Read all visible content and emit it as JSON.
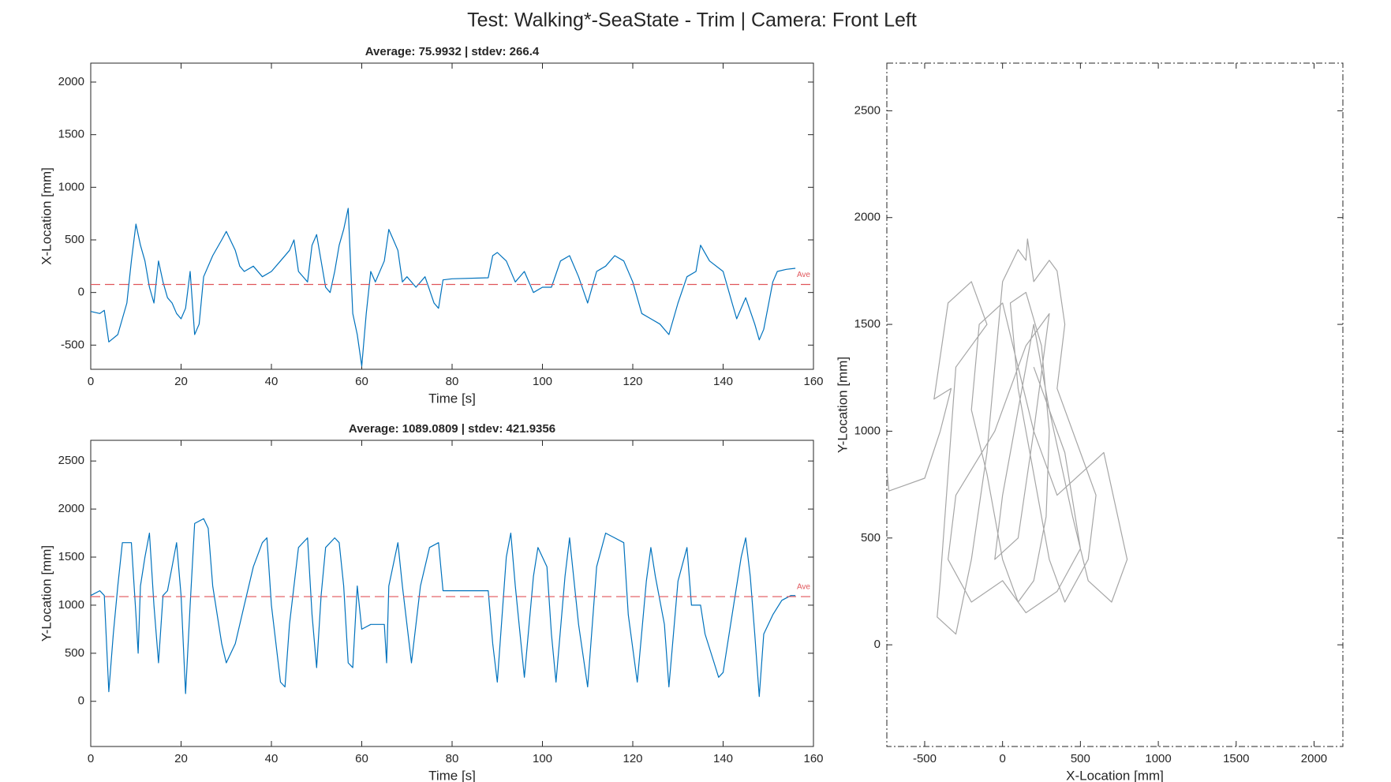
{
  "title": "Test: Walking*-SeaState - Trim  |  Camera: Front Left",
  "chart_data": [
    {
      "type": "line",
      "title": "Average: 75.9932  |  stdev: 266.4",
      "xlabel": "Time [s]",
      "ylabel": "X-Location [mm]",
      "x": [
        0,
        2,
        3,
        4,
        6,
        8,
        9,
        10,
        11,
        12,
        13,
        14,
        15,
        16,
        17,
        18,
        19,
        20,
        21,
        22,
        23,
        24,
        25,
        27,
        29,
        30,
        32,
        33,
        34,
        36,
        38,
        40,
        42,
        44,
        45,
        46,
        48,
        49,
        50,
        51,
        52,
        53,
        54,
        55,
        56,
        57,
        58,
        59,
        60,
        61,
        62,
        63,
        65,
        66,
        67,
        68,
        69,
        70,
        72,
        74,
        76,
        77,
        78,
        80,
        88,
        89,
        90,
        92,
        94,
        96,
        98,
        100,
        102,
        104,
        106,
        108,
        110,
        112,
        114,
        116,
        118,
        120,
        122,
        124,
        126,
        128,
        130,
        132,
        134,
        135,
        137,
        140,
        142,
        143,
        145,
        147,
        148,
        149,
        151,
        152,
        154,
        156
      ],
      "series": [
        {
          "color": "#0072bd",
          "values": [
            -180,
            -200,
            -170,
            -470,
            -400,
            -100,
            300,
            650,
            450,
            300,
            50,
            -100,
            300,
            100,
            -50,
            -100,
            -200,
            -250,
            -150,
            200,
            -400,
            -300,
            150,
            350,
            500,
            580,
            400,
            250,
            200,
            250,
            150,
            200,
            300,
            400,
            500,
            200,
            100,
            450,
            550,
            300,
            50,
            0,
            200,
            450,
            600,
            800,
            -200,
            -400,
            -700,
            -200,
            200,
            100,
            300,
            600,
            500,
            400,
            100,
            150,
            50,
            150,
            -100,
            -150,
            120,
            130,
            140,
            350,
            380,
            300,
            100,
            200,
            0,
            50,
            50,
            300,
            350,
            150,
            -100,
            200,
            250,
            350,
            300,
            100,
            -200,
            -250,
            -300,
            -400,
            -100,
            150,
            200,
            450,
            300,
            200,
            -100,
            -250,
            -50,
            -300,
            -450,
            -350,
            100,
            200,
            220,
            230
          ]
        }
      ],
      "average": 75.9932,
      "average_label": "Ave",
      "average_color": "#e0555a",
      "xlim": [
        0,
        160
      ],
      "ylim": [
        -730,
        2180
      ],
      "xticks": [
        0,
        20,
        40,
        60,
        80,
        100,
        120,
        140,
        160
      ],
      "yticks": [
        -500,
        0,
        500,
        1000,
        1500,
        2000
      ]
    },
    {
      "type": "line",
      "title": "Average: 1089.0809  |  stdev: 421.9356",
      "xlabel": "Time [s]",
      "ylabel": "Y-Location [mm]",
      "x": [
        0,
        2,
        3,
        4,
        5,
        6,
        7,
        9,
        10,
        10.5,
        11,
        12,
        13,
        14,
        15,
        16,
        17,
        18,
        19,
        20,
        21,
        22,
        23,
        25,
        26,
        27,
        29,
        30,
        32,
        34,
        36,
        38,
        39,
        40,
        42,
        43,
        44,
        46,
        48,
        49,
        50,
        51,
        52,
        54,
        55,
        56,
        57,
        58,
        59,
        60,
        62,
        65,
        65.5,
        66,
        68,
        69,
        71,
        73,
        75,
        77,
        78,
        88,
        89,
        90,
        92,
        93,
        94,
        96,
        98,
        99,
        101,
        102,
        103,
        105,
        106,
        108,
        110,
        112,
        114,
        116,
        118,
        119,
        121,
        123,
        124,
        125,
        127,
        128,
        130,
        132,
        133,
        135,
        136,
        138,
        139,
        140,
        142,
        144,
        145,
        146,
        147,
        148,
        149,
        151,
        153,
        155,
        156
      ],
      "series": [
        {
          "color": "#0072bd",
          "values": [
            1100,
            1150,
            1100,
            100,
            700,
            1200,
            1650,
            1650,
            900,
            500,
            1200,
            1500,
            1750,
            1000,
            400,
            1100,
            1150,
            1400,
            1650,
            1100,
            80,
            1000,
            1850,
            1900,
            1800,
            1200,
            600,
            400,
            600,
            1000,
            1400,
            1650,
            1700,
            1000,
            200,
            150,
            800,
            1600,
            1700,
            900,
            350,
            1100,
            1600,
            1700,
            1650,
            1200,
            400,
            350,
            1200,
            750,
            800,
            800,
            400,
            1200,
            1650,
            1200,
            400,
            1200,
            1600,
            1650,
            1150,
            1150,
            600,
            200,
            1500,
            1750,
            1200,
            250,
            1300,
            1600,
            1400,
            700,
            200,
            1300,
            1700,
            800,
            150,
            1400,
            1750,
            1700,
            1650,
            900,
            200,
            1250,
            1600,
            1300,
            800,
            150,
            1250,
            1600,
            1000,
            1000,
            700,
            400,
            250,
            300,
            900,
            1500,
            1700,
            1300,
            700,
            50,
            700,
            900,
            1050,
            1100,
            1100
          ]
        }
      ],
      "average": 1089.0809,
      "average_label": "Ave",
      "average_color": "#e0555a",
      "xlim": [
        0,
        160
      ],
      "ylim": [
        -470,
        2715
      ],
      "xticks": [
        0,
        20,
        40,
        60,
        80,
        100,
        120,
        140,
        160
      ],
      "yticks": [
        0,
        500,
        1000,
        1500,
        2000,
        2500
      ]
    },
    {
      "type": "line",
      "xlabel": "X-Location [mm]",
      "ylabel": "Y-Location [mm]",
      "x": [
        -740,
        -730,
        -500,
        -400,
        -330,
        -440,
        -350,
        -200,
        -100,
        -300,
        -400,
        -420,
        -300,
        -200,
        -100,
        -50,
        0,
        100,
        150,
        160,
        200,
        300,
        350,
        400,
        350,
        500,
        600,
        550,
        400,
        300,
        200,
        100,
        50,
        150,
        250,
        300,
        280,
        200,
        100,
        0,
        -100,
        -200,
        -150,
        0,
        100,
        200,
        350,
        650,
        800,
        700,
        550,
        450,
        300,
        200,
        100,
        0,
        -50,
        100,
        200,
        300,
        150,
        -50,
        -300,
        -350,
        -200,
        0,
        150,
        350,
        500,
        400,
        200
      ],
      "series": [
        {
          "color": "#a6a6a6",
          "values": [
            800,
            720,
            780,
            1000,
            1200,
            1150,
            1600,
            1700,
            1500,
            1300,
            300,
            130,
            50,
            400,
            900,
            1300,
            1700,
            1850,
            1800,
            1900,
            1700,
            1800,
            1750,
            1500,
            1200,
            900,
            700,
            400,
            200,
            400,
            800,
            1200,
            1600,
            1650,
            1400,
            1000,
            600,
            300,
            200,
            400,
            800,
            1100,
            1500,
            1600,
            1300,
            1000,
            700,
            900,
            400,
            200,
            300,
            600,
            1100,
            1500,
            1100,
            700,
            400,
            500,
            1000,
            1550,
            1400,
            1000,
            700,
            400,
            200,
            300,
            150,
            250,
            450,
            900,
            1300
          ]
        }
      ],
      "xlim": [
        -743,
        2185
      ],
      "ylim": [
        -476,
        2723
      ],
      "xticks": [
        -500,
        0,
        500,
        1000,
        1500,
        2000
      ],
      "yticks": [
        0,
        500,
        1000,
        1500,
        2000,
        2500
      ]
    }
  ]
}
